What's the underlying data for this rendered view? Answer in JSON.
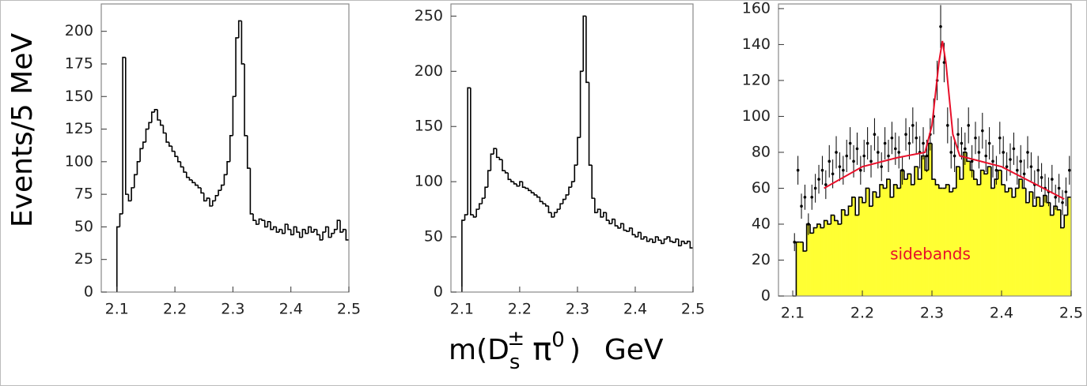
{
  "chart_data": [
    {
      "type": "histogram",
      "ylabel": "Events/5 MeV",
      "color": "#000000",
      "bins": [
        2.1,
        2.105,
        2.11,
        2.115,
        2.12,
        2.125,
        2.13,
        2.135,
        2.14,
        2.145,
        2.15,
        2.155,
        2.16,
        2.165,
        2.17,
        2.175,
        2.18,
        2.185,
        2.19,
        2.195,
        2.2,
        2.205,
        2.21,
        2.215,
        2.22,
        2.225,
        2.23,
        2.235,
        2.24,
        2.245,
        2.25,
        2.255,
        2.26,
        2.265,
        2.27,
        2.275,
        2.28,
        2.285,
        2.29,
        2.295,
        2.3,
        2.305,
        2.31,
        2.315,
        2.32,
        2.325,
        2.33,
        2.335,
        2.34,
        2.345,
        2.35,
        2.355,
        2.36,
        2.365,
        2.37,
        2.375,
        2.38,
        2.385,
        2.39,
        2.395,
        2.4,
        2.405,
        2.41,
        2.415,
        2.42,
        2.425,
        2.43,
        2.435,
        2.44,
        2.445,
        2.45,
        2.455,
        2.46,
        2.465,
        2.47,
        2.475,
        2.48,
        2.485,
        2.49,
        2.495,
        2.5
      ],
      "values": [
        50,
        60,
        180,
        75,
        70,
        80,
        90,
        100,
        110,
        115,
        125,
        130,
        138,
        140,
        132,
        128,
        122,
        115,
        112,
        108,
        104,
        100,
        96,
        92,
        88,
        86,
        84,
        82,
        80,
        76,
        70,
        72,
        66,
        70,
        74,
        78,
        82,
        90,
        100,
        120,
        150,
        195,
        208,
        175,
        120,
        95,
        60,
        55,
        52,
        56,
        55,
        50,
        54,
        48,
        50,
        46,
        48,
        45,
        52,
        48,
        44,
        50,
        46,
        42,
        48,
        45,
        50,
        46,
        48,
        44,
        40,
        46,
        50,
        42,
        45,
        48,
        55,
        46,
        48,
        40
      ],
      "xlim": [
        2.073,
        2.5
      ],
      "ylim": [
        0,
        221
      ],
      "xticks": [
        2.1,
        2.2,
        2.3,
        2.4,
        2.5
      ],
      "yticks": [
        0,
        25,
        50,
        75,
        100,
        125,
        150,
        175,
        200
      ]
    },
    {
      "type": "histogram",
      "xlabel": [
        "m(D",
        "s",
        "±",
        "π",
        "0",
        ")",
        "GeV"
      ],
      "color": "#000000",
      "bins": [
        2.1,
        2.105,
        2.11,
        2.115,
        2.12,
        2.125,
        2.13,
        2.135,
        2.14,
        2.145,
        2.15,
        2.155,
        2.16,
        2.165,
        2.17,
        2.175,
        2.18,
        2.185,
        2.19,
        2.195,
        2.2,
        2.205,
        2.21,
        2.215,
        2.22,
        2.225,
        2.23,
        2.235,
        2.24,
        2.245,
        2.25,
        2.255,
        2.26,
        2.265,
        2.27,
        2.275,
        2.28,
        2.285,
        2.29,
        2.295,
        2.3,
        2.305,
        2.31,
        2.315,
        2.32,
        2.325,
        2.33,
        2.335,
        2.34,
        2.345,
        2.35,
        2.355,
        2.36,
        2.365,
        2.37,
        2.375,
        2.38,
        2.385,
        2.39,
        2.395,
        2.4,
        2.405,
        2.41,
        2.415,
        2.42,
        2.425,
        2.43,
        2.435,
        2.44,
        2.445,
        2.45,
        2.455,
        2.46,
        2.465,
        2.47,
        2.475,
        2.48,
        2.485,
        2.49,
        2.495,
        2.5
      ],
      "values": [
        65,
        70,
        185,
        70,
        68,
        75,
        80,
        85,
        95,
        110,
        125,
        130,
        122,
        120,
        110,
        108,
        102,
        100,
        98,
        96,
        100,
        95,
        94,
        92,
        90,
        88,
        86,
        82,
        80,
        78,
        72,
        68,
        72,
        75,
        80,
        84,
        88,
        95,
        100,
        115,
        140,
        200,
        250,
        190,
        115,
        85,
        72,
        75,
        68,
        72,
        65,
        62,
        66,
        60,
        58,
        62,
        56,
        55,
        58,
        52,
        50,
        54,
        48,
        50,
        46,
        48,
        45,
        50,
        47,
        44,
        48,
        50,
        46,
        45,
        48,
        42,
        46,
        44,
        46,
        40
      ],
      "xlim": [
        2.081,
        2.5
      ],
      "ylim": [
        0,
        261
      ],
      "xticks": [
        2.1,
        2.2,
        2.3,
        2.4,
        2.5
      ],
      "yticks": [
        0,
        50,
        100,
        150,
        200,
        250
      ]
    },
    {
      "type": "histogram",
      "annotation": "sidebands",
      "color": "#ffff33",
      "bins": [
        2.1,
        2.105,
        2.11,
        2.115,
        2.12,
        2.125,
        2.13,
        2.135,
        2.14,
        2.145,
        2.15,
        2.155,
        2.16,
        2.165,
        2.17,
        2.175,
        2.18,
        2.185,
        2.19,
        2.195,
        2.2,
        2.205,
        2.21,
        2.215,
        2.22,
        2.225,
        2.23,
        2.235,
        2.24,
        2.245,
        2.25,
        2.255,
        2.26,
        2.265,
        2.27,
        2.275,
        2.28,
        2.285,
        2.29,
        2.295,
        2.3,
        2.305,
        2.31,
        2.315,
        2.32,
        2.325,
        2.33,
        2.335,
        2.34,
        2.345,
        2.35,
        2.355,
        2.36,
        2.365,
        2.37,
        2.375,
        2.38,
        2.385,
        2.39,
        2.395,
        2.4,
        2.405,
        2.41,
        2.415,
        2.42,
        2.425,
        2.43,
        2.435,
        2.44,
        2.445,
        2.45,
        2.455,
        2.46,
        2.465,
        2.47,
        2.475,
        2.48,
        2.485,
        2.49,
        2.495,
        2.5
      ],
      "values": [
        0,
        30,
        30,
        25,
        40,
        35,
        38,
        40,
        38,
        42,
        40,
        45,
        42,
        40,
        48,
        45,
        50,
        55,
        45,
        55,
        52,
        60,
        50,
        58,
        55,
        62,
        60,
        65,
        55,
        62,
        60,
        70,
        65,
        68,
        62,
        72,
        65,
        78,
        70,
        85,
        65,
        62,
        60,
        60,
        62,
        58,
        60,
        72,
        65,
        80,
        75,
        70,
        65,
        62,
        70,
        68,
        72,
        60,
        65,
        70,
        62,
        58,
        60,
        55,
        60,
        65,
        60,
        52,
        58,
        50,
        55,
        50,
        56,
        52,
        45,
        50,
        48,
        38,
        45,
        55
      ],
      "points": {
        "values": [
          30,
          70,
          50,
          55,
          40,
          55,
          60,
          65,
          70,
          62,
          75,
          68,
          80,
          72,
          70,
          78,
          85,
          75,
          82,
          70,
          78,
          85,
          75,
          90,
          80,
          72,
          85,
          78,
          88,
          82,
          80,
          70,
          90,
          85,
          95,
          88,
          80,
          85,
          78,
          90,
          100,
          120,
          150,
          130,
          95,
          80,
          78,
          90,
          85,
          82,
          95,
          75,
          88,
          80,
          92,
          78,
          85,
          75,
          70,
          88,
          80,
          72,
          76,
          82,
          70,
          75,
          68,
          80,
          72,
          62,
          70,
          66,
          60,
          58,
          65,
          55,
          60,
          52,
          58,
          70
        ],
        "errors": [
          5,
          8,
          7,
          7,
          6,
          7,
          8,
          8,
          8,
          8,
          9,
          8,
          9,
          8,
          8,
          9,
          9,
          9,
          9,
          8,
          9,
          9,
          9,
          9,
          9,
          8,
          9,
          9,
          9,
          9,
          9,
          8,
          9,
          9,
          10,
          9,
          9,
          9,
          9,
          9,
          10,
          11,
          12,
          11,
          10,
          9,
          9,
          9,
          9,
          9,
          10,
          9,
          9,
          9,
          10,
          9,
          9,
          9,
          8,
          9,
          9,
          8,
          9,
          9,
          8,
          9,
          8,
          9,
          8,
          8,
          8,
          8,
          8,
          8,
          8,
          7,
          8,
          7,
          8,
          8
        ]
      },
      "fit": {
        "color": "#e8102a",
        "x": [
          2.145,
          2.2,
          2.25,
          2.29,
          2.3,
          2.31,
          2.315,
          2.32,
          2.33,
          2.34,
          2.4,
          2.45,
          2.49
        ],
        "y": [
          60,
          72,
          77,
          80,
          95,
          130,
          142,
          130,
          90,
          78,
          72,
          62,
          54
        ]
      },
      "xlim": [
        2.0795,
        2.5
      ],
      "ylim": [
        0,
        162.6
      ],
      "xticks": [
        2.1,
        2.2,
        2.3,
        2.4,
        2.5
      ],
      "yticks": [
        0,
        20,
        40,
        60,
        80,
        100,
        120,
        140,
        160
      ]
    }
  ]
}
